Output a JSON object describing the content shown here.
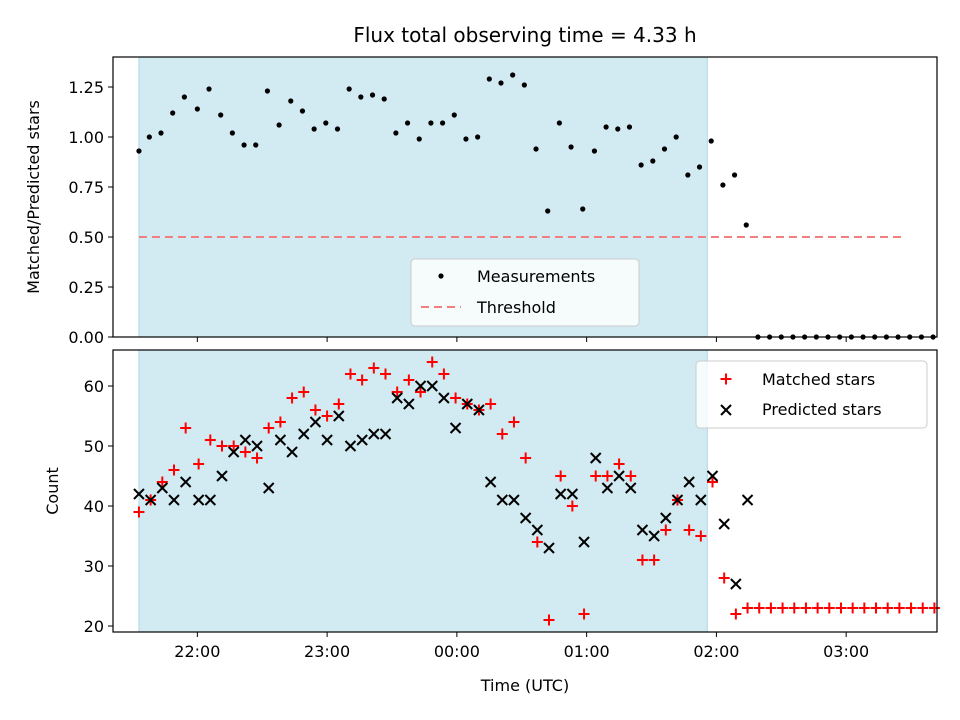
{
  "chart_data": {
    "type": "scatter",
    "title": "Flux total observing time = 4.33 h",
    "xlabel": "Time (UTC)",
    "x_unit": "hours UTC (values past 24 are after midnight)",
    "xlim": [
      21.35,
      27.7
    ],
    "xticks": [
      22,
      23,
      24,
      25,
      26,
      27
    ],
    "xtick_labels": [
      "22:00",
      "23:00",
      "00:00",
      "01:00",
      "02:00",
      "03:00"
    ],
    "shaded_interval": [
      21.55,
      25.93
    ],
    "shade_color": "#add8e6",
    "top_panel": {
      "ylabel": "Matched/Predicted stars",
      "ylim": [
        0,
        1.4
      ],
      "yticks": [
        0,
        0.25,
        0.5,
        0.75,
        1.0,
        1.25
      ],
      "ytick_labels": [
        "0.00",
        "0.25",
        "0.50",
        "0.75",
        "1.00",
        "1.25"
      ],
      "threshold": 0.5,
      "threshold_x": [
        21.55,
        27.45
      ],
      "threshold_color": "#f08080",
      "legend": [
        "Measurements",
        "Threshold"
      ],
      "legend_position": "lower-center",
      "series": [
        {
          "name": "Measurements",
          "color": "#000000",
          "marker": "dot",
          "points": [
            [
              21.55,
              0.93
            ],
            [
              21.63,
              1.0
            ],
            [
              21.72,
              1.02
            ],
            [
              21.81,
              1.12
            ],
            [
              21.9,
              1.2
            ],
            [
              22.0,
              1.14
            ],
            [
              22.09,
              1.24
            ],
            [
              22.18,
              1.11
            ],
            [
              22.27,
              1.02
            ],
            [
              22.36,
              0.96
            ],
            [
              22.45,
              0.96
            ],
            [
              22.54,
              1.23
            ],
            [
              22.63,
              1.06
            ],
            [
              22.72,
              1.18
            ],
            [
              22.81,
              1.13
            ],
            [
              22.9,
              1.04
            ],
            [
              22.99,
              1.07
            ],
            [
              23.08,
              1.04
            ],
            [
              23.17,
              1.24
            ],
            [
              23.26,
              1.2
            ],
            [
              23.35,
              1.21
            ],
            [
              23.44,
              1.19
            ],
            [
              23.53,
              1.02
            ],
            [
              23.62,
              1.07
            ],
            [
              23.71,
              0.99
            ],
            [
              23.8,
              1.07
            ],
            [
              23.89,
              1.07
            ],
            [
              23.98,
              1.11
            ],
            [
              24.07,
              0.99
            ],
            [
              24.16,
              1.0
            ],
            [
              24.25,
              1.29
            ],
            [
              24.34,
              1.27
            ],
            [
              24.43,
              1.31
            ],
            [
              24.52,
              1.26
            ],
            [
              24.61,
              0.94
            ],
            [
              24.7,
              0.63
            ],
            [
              24.79,
              1.07
            ],
            [
              24.88,
              0.95
            ],
            [
              24.97,
              0.64
            ],
            [
              25.06,
              0.93
            ],
            [
              25.15,
              1.05
            ],
            [
              25.24,
              1.04
            ],
            [
              25.33,
              1.05
            ],
            [
              25.42,
              0.86
            ],
            [
              25.51,
              0.88
            ],
            [
              25.6,
              0.94
            ],
            [
              25.69,
              1.0
            ],
            [
              25.78,
              0.81
            ],
            [
              25.87,
              0.85
            ],
            [
              25.96,
              0.98
            ],
            [
              26.05,
              0.76
            ],
            [
              26.14,
              0.81
            ],
            [
              26.23,
              0.56
            ],
            [
              26.32,
              0.0
            ],
            [
              26.41,
              0.0
            ],
            [
              26.5,
              0.0
            ],
            [
              26.59,
              0.0
            ],
            [
              26.68,
              0.0
            ],
            [
              26.77,
              0.0
            ],
            [
              26.86,
              0.0
            ],
            [
              26.95,
              0.0
            ],
            [
              27.04,
              0.0
            ],
            [
              27.13,
              0.0
            ],
            [
              27.22,
              0.0
            ],
            [
              27.31,
              0.0
            ],
            [
              27.4,
              0.0
            ],
            [
              27.49,
              0.0
            ],
            [
              27.58,
              0.0
            ],
            [
              27.67,
              0.0
            ],
            [
              27.76,
              0.0
            ]
          ]
        }
      ]
    },
    "bottom_panel": {
      "ylabel": "Count",
      "ylim": [
        19,
        66
      ],
      "yticks": [
        20,
        30,
        40,
        50,
        60
      ],
      "ytick_labels": [
        "20",
        "30",
        "40",
        "50",
        "60"
      ],
      "legend": [
        "Matched stars",
        "Predicted stars"
      ],
      "legend_position": "top-right",
      "series": [
        {
          "name": "Matched stars",
          "color": "#ff0000",
          "marker": "plus",
          "points": [
            [
              21.55,
              39
            ],
            [
              21.64,
              41
            ],
            [
              21.73,
              44
            ],
            [
              21.82,
              46
            ],
            [
              21.91,
              53
            ],
            [
              22.01,
              47
            ],
            [
              22.1,
              51
            ],
            [
              22.19,
              50
            ],
            [
              22.28,
              50
            ],
            [
              22.37,
              49
            ],
            [
              22.46,
              48
            ],
            [
              22.55,
              53
            ],
            [
              22.64,
              54
            ],
            [
              22.73,
              58
            ],
            [
              22.82,
              59
            ],
            [
              22.91,
              56
            ],
            [
              23.0,
              55
            ],
            [
              23.09,
              57
            ],
            [
              23.18,
              62
            ],
            [
              23.27,
              61
            ],
            [
              23.36,
              63
            ],
            [
              23.45,
              62
            ],
            [
              23.54,
              59
            ],
            [
              23.63,
              61
            ],
            [
              23.72,
              59
            ],
            [
              23.81,
              64
            ],
            [
              23.9,
              62
            ],
            [
              23.99,
              58
            ],
            [
              24.08,
              57
            ],
            [
              24.17,
              56
            ],
            [
              24.26,
              57
            ],
            [
              24.35,
              52
            ],
            [
              24.44,
              54
            ],
            [
              24.53,
              48
            ],
            [
              24.62,
              34
            ],
            [
              24.71,
              21
            ],
            [
              24.8,
              45
            ],
            [
              24.89,
              40
            ],
            [
              24.98,
              22
            ],
            [
              25.07,
              45
            ],
            [
              25.16,
              45
            ],
            [
              25.25,
              47
            ],
            [
              25.34,
              45
            ],
            [
              25.43,
              31
            ],
            [
              25.52,
              31
            ],
            [
              25.61,
              36
            ],
            [
              25.7,
              41
            ],
            [
              25.79,
              36
            ],
            [
              25.88,
              35
            ],
            [
              25.97,
              44
            ],
            [
              26.06,
              28
            ],
            [
              26.15,
              22
            ],
            [
              26.24,
              23
            ],
            [
              26.33,
              23
            ],
            [
              26.42,
              23
            ],
            [
              26.51,
              23
            ],
            [
              26.6,
              23
            ],
            [
              26.69,
              23
            ],
            [
              26.78,
              23
            ],
            [
              26.87,
              23
            ],
            [
              26.96,
              23
            ],
            [
              27.05,
              23
            ],
            [
              27.14,
              23
            ],
            [
              27.23,
              23
            ],
            [
              27.32,
              23
            ],
            [
              27.41,
              23
            ],
            [
              27.5,
              23
            ],
            [
              27.59,
              23
            ],
            [
              27.68,
              23
            ],
            [
              27.77,
              23
            ]
          ]
        },
        {
          "name": "Predicted stars",
          "color": "#000000",
          "marker": "x",
          "points": [
            [
              21.55,
              42
            ],
            [
              21.64,
              41
            ],
            [
              21.73,
              43
            ],
            [
              21.82,
              41
            ],
            [
              21.91,
              44
            ],
            [
              22.01,
              41
            ],
            [
              22.1,
              41
            ],
            [
              22.19,
              45
            ],
            [
              22.28,
              49
            ],
            [
              22.37,
              51
            ],
            [
              22.46,
              50
            ],
            [
              22.55,
              43
            ],
            [
              22.64,
              51
            ],
            [
              22.73,
              49
            ],
            [
              22.82,
              52
            ],
            [
              22.91,
              54
            ],
            [
              23.0,
              51
            ],
            [
              23.09,
              55
            ],
            [
              23.18,
              50
            ],
            [
              23.27,
              51
            ],
            [
              23.36,
              52
            ],
            [
              23.45,
              52
            ],
            [
              23.54,
              58
            ],
            [
              23.63,
              57
            ],
            [
              23.72,
              60
            ],
            [
              23.81,
              60
            ],
            [
              23.9,
              58
            ],
            [
              23.99,
              53
            ],
            [
              24.08,
              57
            ],
            [
              24.17,
              56
            ],
            [
              24.26,
              44
            ],
            [
              24.35,
              41
            ],
            [
              24.44,
              41
            ],
            [
              24.53,
              38
            ],
            [
              24.62,
              36
            ],
            [
              24.71,
              33
            ],
            [
              24.8,
              42
            ],
            [
              24.89,
              42
            ],
            [
              24.98,
              34
            ],
            [
              25.07,
              48
            ],
            [
              25.16,
              43
            ],
            [
              25.25,
              45
            ],
            [
              25.34,
              43
            ],
            [
              25.43,
              36
            ],
            [
              25.52,
              35
            ],
            [
              25.61,
              38
            ],
            [
              25.7,
              41
            ],
            [
              25.79,
              44
            ],
            [
              25.88,
              41
            ],
            [
              25.97,
              45
            ],
            [
              26.06,
              37
            ],
            [
              26.15,
              27
            ],
            [
              26.24,
              41
            ]
          ]
        }
      ]
    }
  }
}
